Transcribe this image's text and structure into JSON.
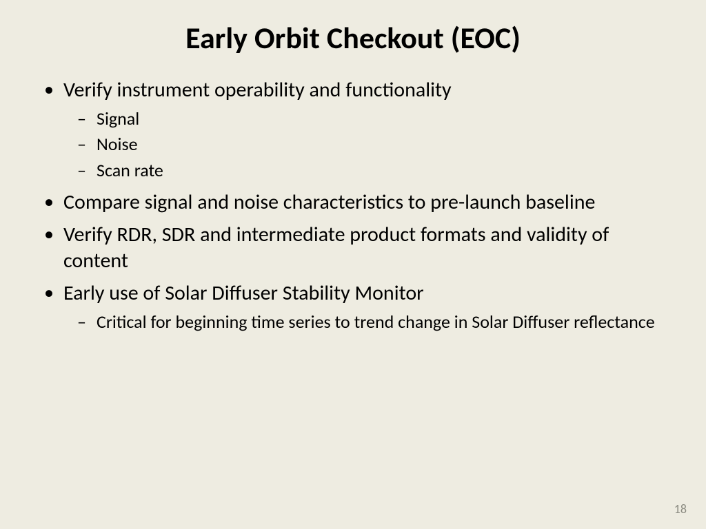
{
  "slide": {
    "title": "Early Orbit Checkout (EOC)",
    "page_number": "18",
    "background_color": "#eeece1",
    "title_color": "#000000",
    "text_color": "#000000",
    "page_number_color": "#8a8a80",
    "title_fontsize": 44,
    "level1_fontsize": 30,
    "level2_fontsize": 26,
    "bullets": {
      "b1": {
        "text": "Verify instrument operability and functionality",
        "sub": {
          "s1": "Signal",
          "s2": "Noise",
          "s3": "Scan rate"
        }
      },
      "b2": {
        "text": "Compare signal and noise characteristics to pre-launch baseline"
      },
      "b3": {
        "text": "Verify RDR, SDR and intermediate product formats and validity of content"
      },
      "b4": {
        "text": "Early use of Solar Diffuser Stability Monitor",
        "sub": {
          "s1": "Critical for beginning time series to trend change in Solar Diffuser reflectance"
        }
      }
    }
  }
}
